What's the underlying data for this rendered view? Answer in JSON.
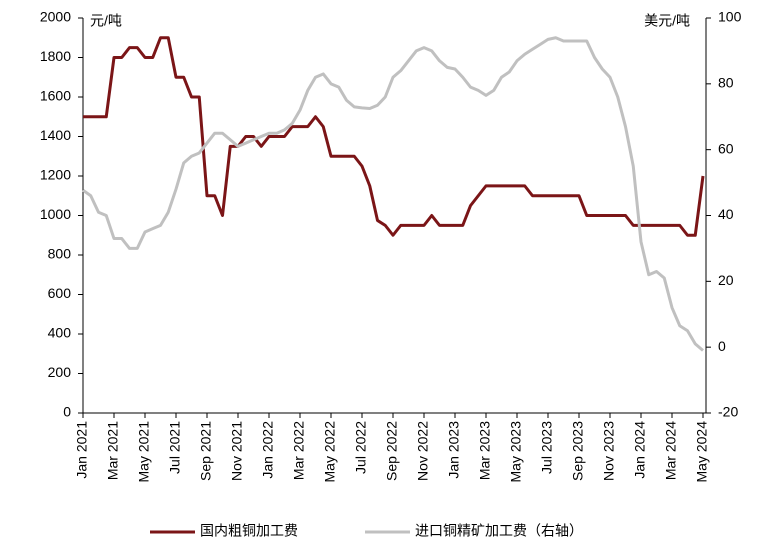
{
  "chart_data": {
    "type": "line",
    "y_unit": "元/吨",
    "y2_unit": "美元/吨",
    "categories": [
      "Jan 2021",
      null,
      null,
      null,
      "Mar 2021",
      null,
      null,
      null,
      "May 2021",
      null,
      null,
      null,
      "Jul 2021",
      null,
      null,
      null,
      "Sep 2021",
      null,
      null,
      null,
      "Nov 2021",
      null,
      null,
      null,
      "Jan 2022",
      null,
      null,
      null,
      "Mar 2022",
      null,
      null,
      null,
      "May 2022",
      null,
      null,
      null,
      "Jul 2022",
      null,
      null,
      null,
      "Sep 2022",
      null,
      null,
      null,
      "Nov 2022",
      null,
      null,
      null,
      "Jan 2023",
      null,
      null,
      null,
      "Mar 2023",
      null,
      null,
      null,
      "May 2023",
      null,
      null,
      null,
      "Jul 2023",
      null,
      null,
      null,
      "Sep 2023",
      null,
      null,
      null,
      "Nov 2023",
      null,
      null,
      null,
      "Jan 2024",
      null,
      null,
      null,
      "Mar 2024",
      null,
      null,
      null,
      "May 2024"
    ],
    "series": [
      {
        "name": "国内粗铜加工费",
        "color": "#7b1517",
        "axis": "y",
        "values": [
          1500,
          1500,
          1500,
          1500,
          1800,
          1800,
          1850,
          1850,
          1800,
          1800,
          1900,
          1900,
          1700,
          1700,
          1600,
          1600,
          1100,
          1100,
          1000,
          1350,
          1350,
          1400,
          1400,
          1350,
          1400,
          1400,
          1400,
          1450,
          1450,
          1450,
          1500,
          1450,
          1300,
          1300,
          1300,
          1300,
          1250,
          1150,
          975,
          950,
          900,
          950,
          950,
          950,
          950,
          1000,
          950,
          950,
          950,
          950,
          1050,
          1100,
          1150,
          1150,
          1150,
          1150,
          1150,
          1150,
          1100,
          1100,
          1100,
          1100,
          1100,
          1100,
          1100,
          1000,
          1000,
          1000,
          1000,
          1000,
          1000,
          950,
          950,
          950,
          950,
          950,
          950,
          950,
          900,
          900,
          1200
        ]
      },
      {
        "name": "进口铜精矿加工费（右轴）",
        "color": "#c0c0c0",
        "axis": "y2",
        "values": [
          47.7,
          46,
          41,
          40,
          33,
          33,
          30,
          30,
          35,
          36,
          37,
          41,
          48,
          56,
          58,
          59,
          62,
          65,
          65,
          63,
          61,
          62,
          63,
          64,
          65,
          65,
          66,
          68,
          72,
          78,
          82,
          83,
          80,
          79,
          75,
          73,
          72.7,
          72.5,
          73.5,
          76,
          82,
          84,
          87,
          90,
          91,
          90,
          87,
          85,
          84.5,
          82,
          79,
          78,
          76.5,
          78,
          82,
          83.6,
          87,
          89,
          90.5,
          92,
          93.5,
          94,
          93,
          93,
          93,
          93,
          88,
          84.5,
          82,
          76,
          67,
          55,
          32,
          22,
          23,
          21,
          12,
          6.5,
          5,
          1,
          -1
        ]
      }
    ],
    "ylim": [
      0,
      2000
    ],
    "yticks": [
      0,
      200,
      400,
      600,
      800,
      1000,
      1200,
      1400,
      1600,
      1800,
      2000
    ],
    "y2lim": [
      -20,
      100
    ],
    "y2ticks": [
      -20,
      0,
      20,
      40,
      60,
      80,
      100
    ],
    "legend": "bottom"
  }
}
